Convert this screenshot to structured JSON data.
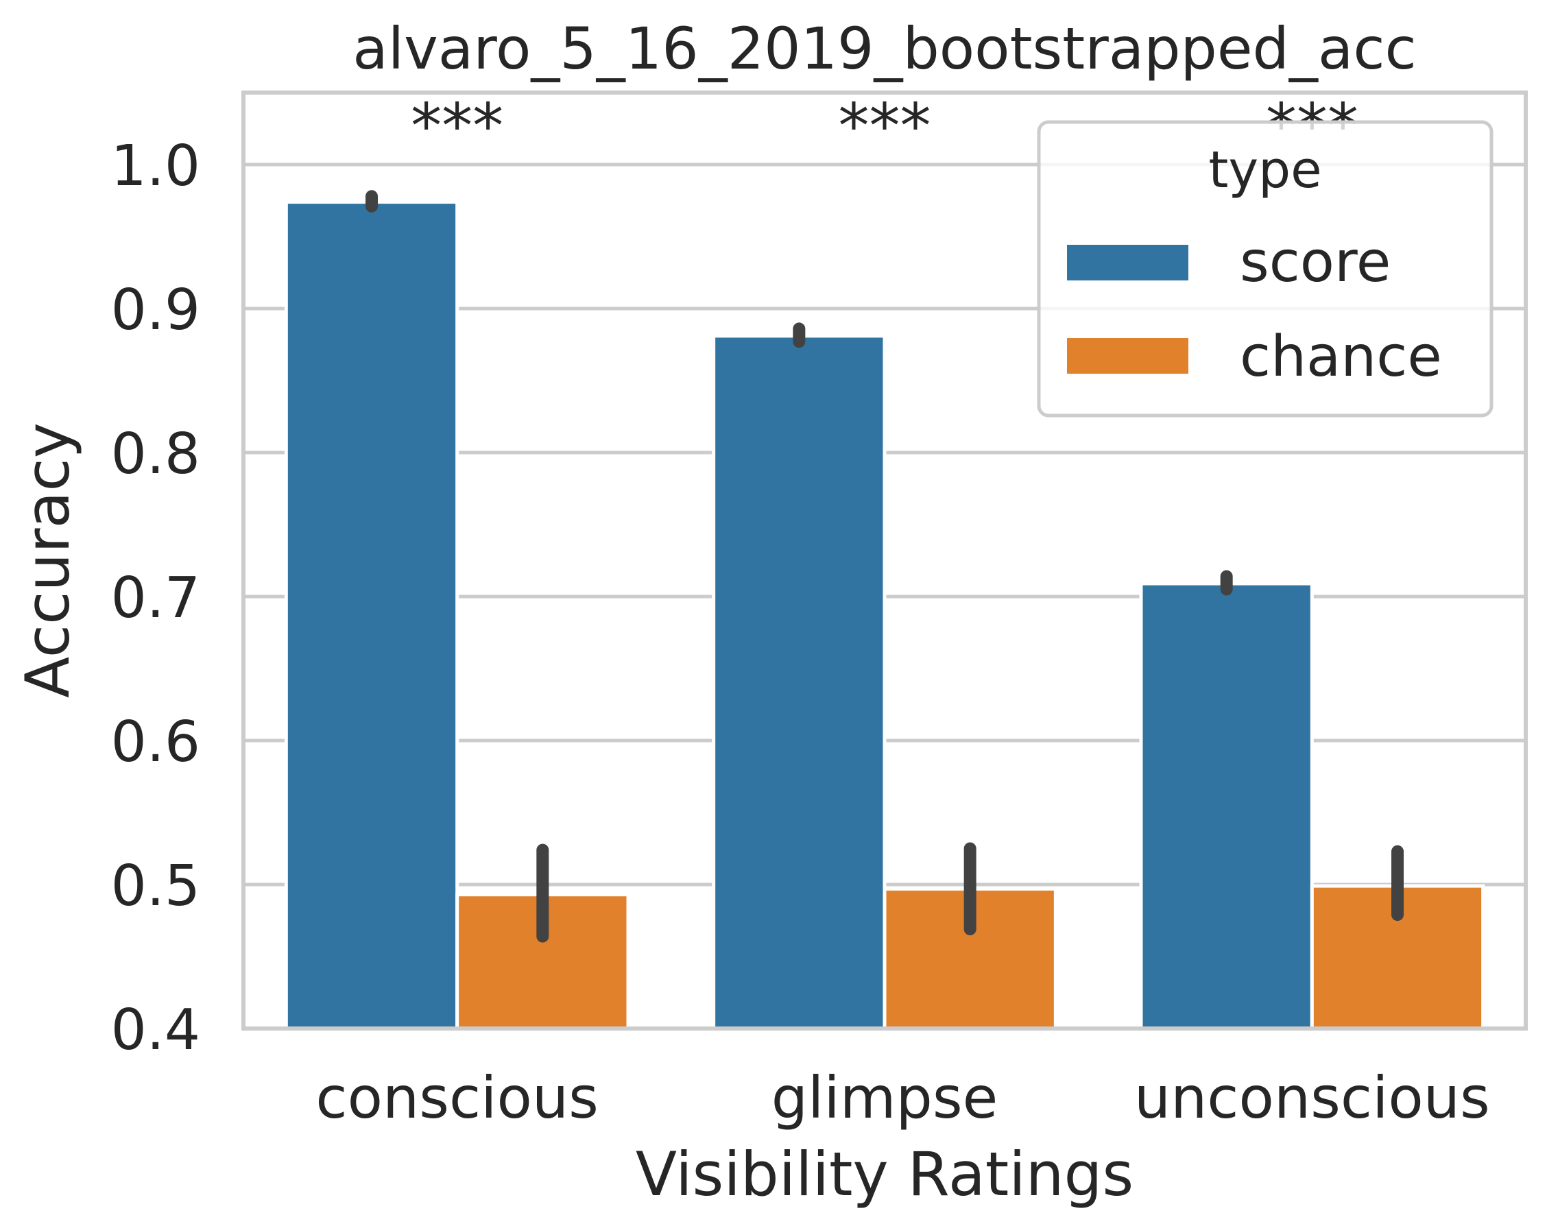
{
  "chart_data": {
    "type": "bar",
    "title": "alvaro_5_16_2019_bootstrapped_acc",
    "xlabel": "Visibility Ratings",
    "ylabel": "Accuracy",
    "categories": [
      "conscious",
      "glimpse",
      "unconscious"
    ],
    "ylim": [
      0.4,
      1.05
    ],
    "yticks": [
      0.4,
      0.5,
      0.6,
      0.7,
      0.8,
      0.9,
      1.0
    ],
    "ytick_labels": [
      "0.4",
      "0.5",
      "0.6",
      "0.7",
      "0.8",
      "0.9",
      "1.0"
    ],
    "grid": true,
    "legend": {
      "title": "type",
      "placement": "top-right"
    },
    "series": [
      {
        "name": "score",
        "color": "#3274a1",
        "values": [
          0.974,
          0.881,
          0.709
        ],
        "error_low": [
          0.971,
          0.877,
          0.705
        ],
        "error_high": [
          0.978,
          0.886,
          0.714
        ]
      },
      {
        "name": "chance",
        "color": "#e1812c",
        "values": [
          0.493,
          0.497,
          0.499
        ],
        "error_low": [
          0.464,
          0.469,
          0.479
        ],
        "error_high": [
          0.524,
          0.525,
          0.523
        ]
      }
    ],
    "annotations": [
      "***",
      "***",
      "***"
    ]
  }
}
